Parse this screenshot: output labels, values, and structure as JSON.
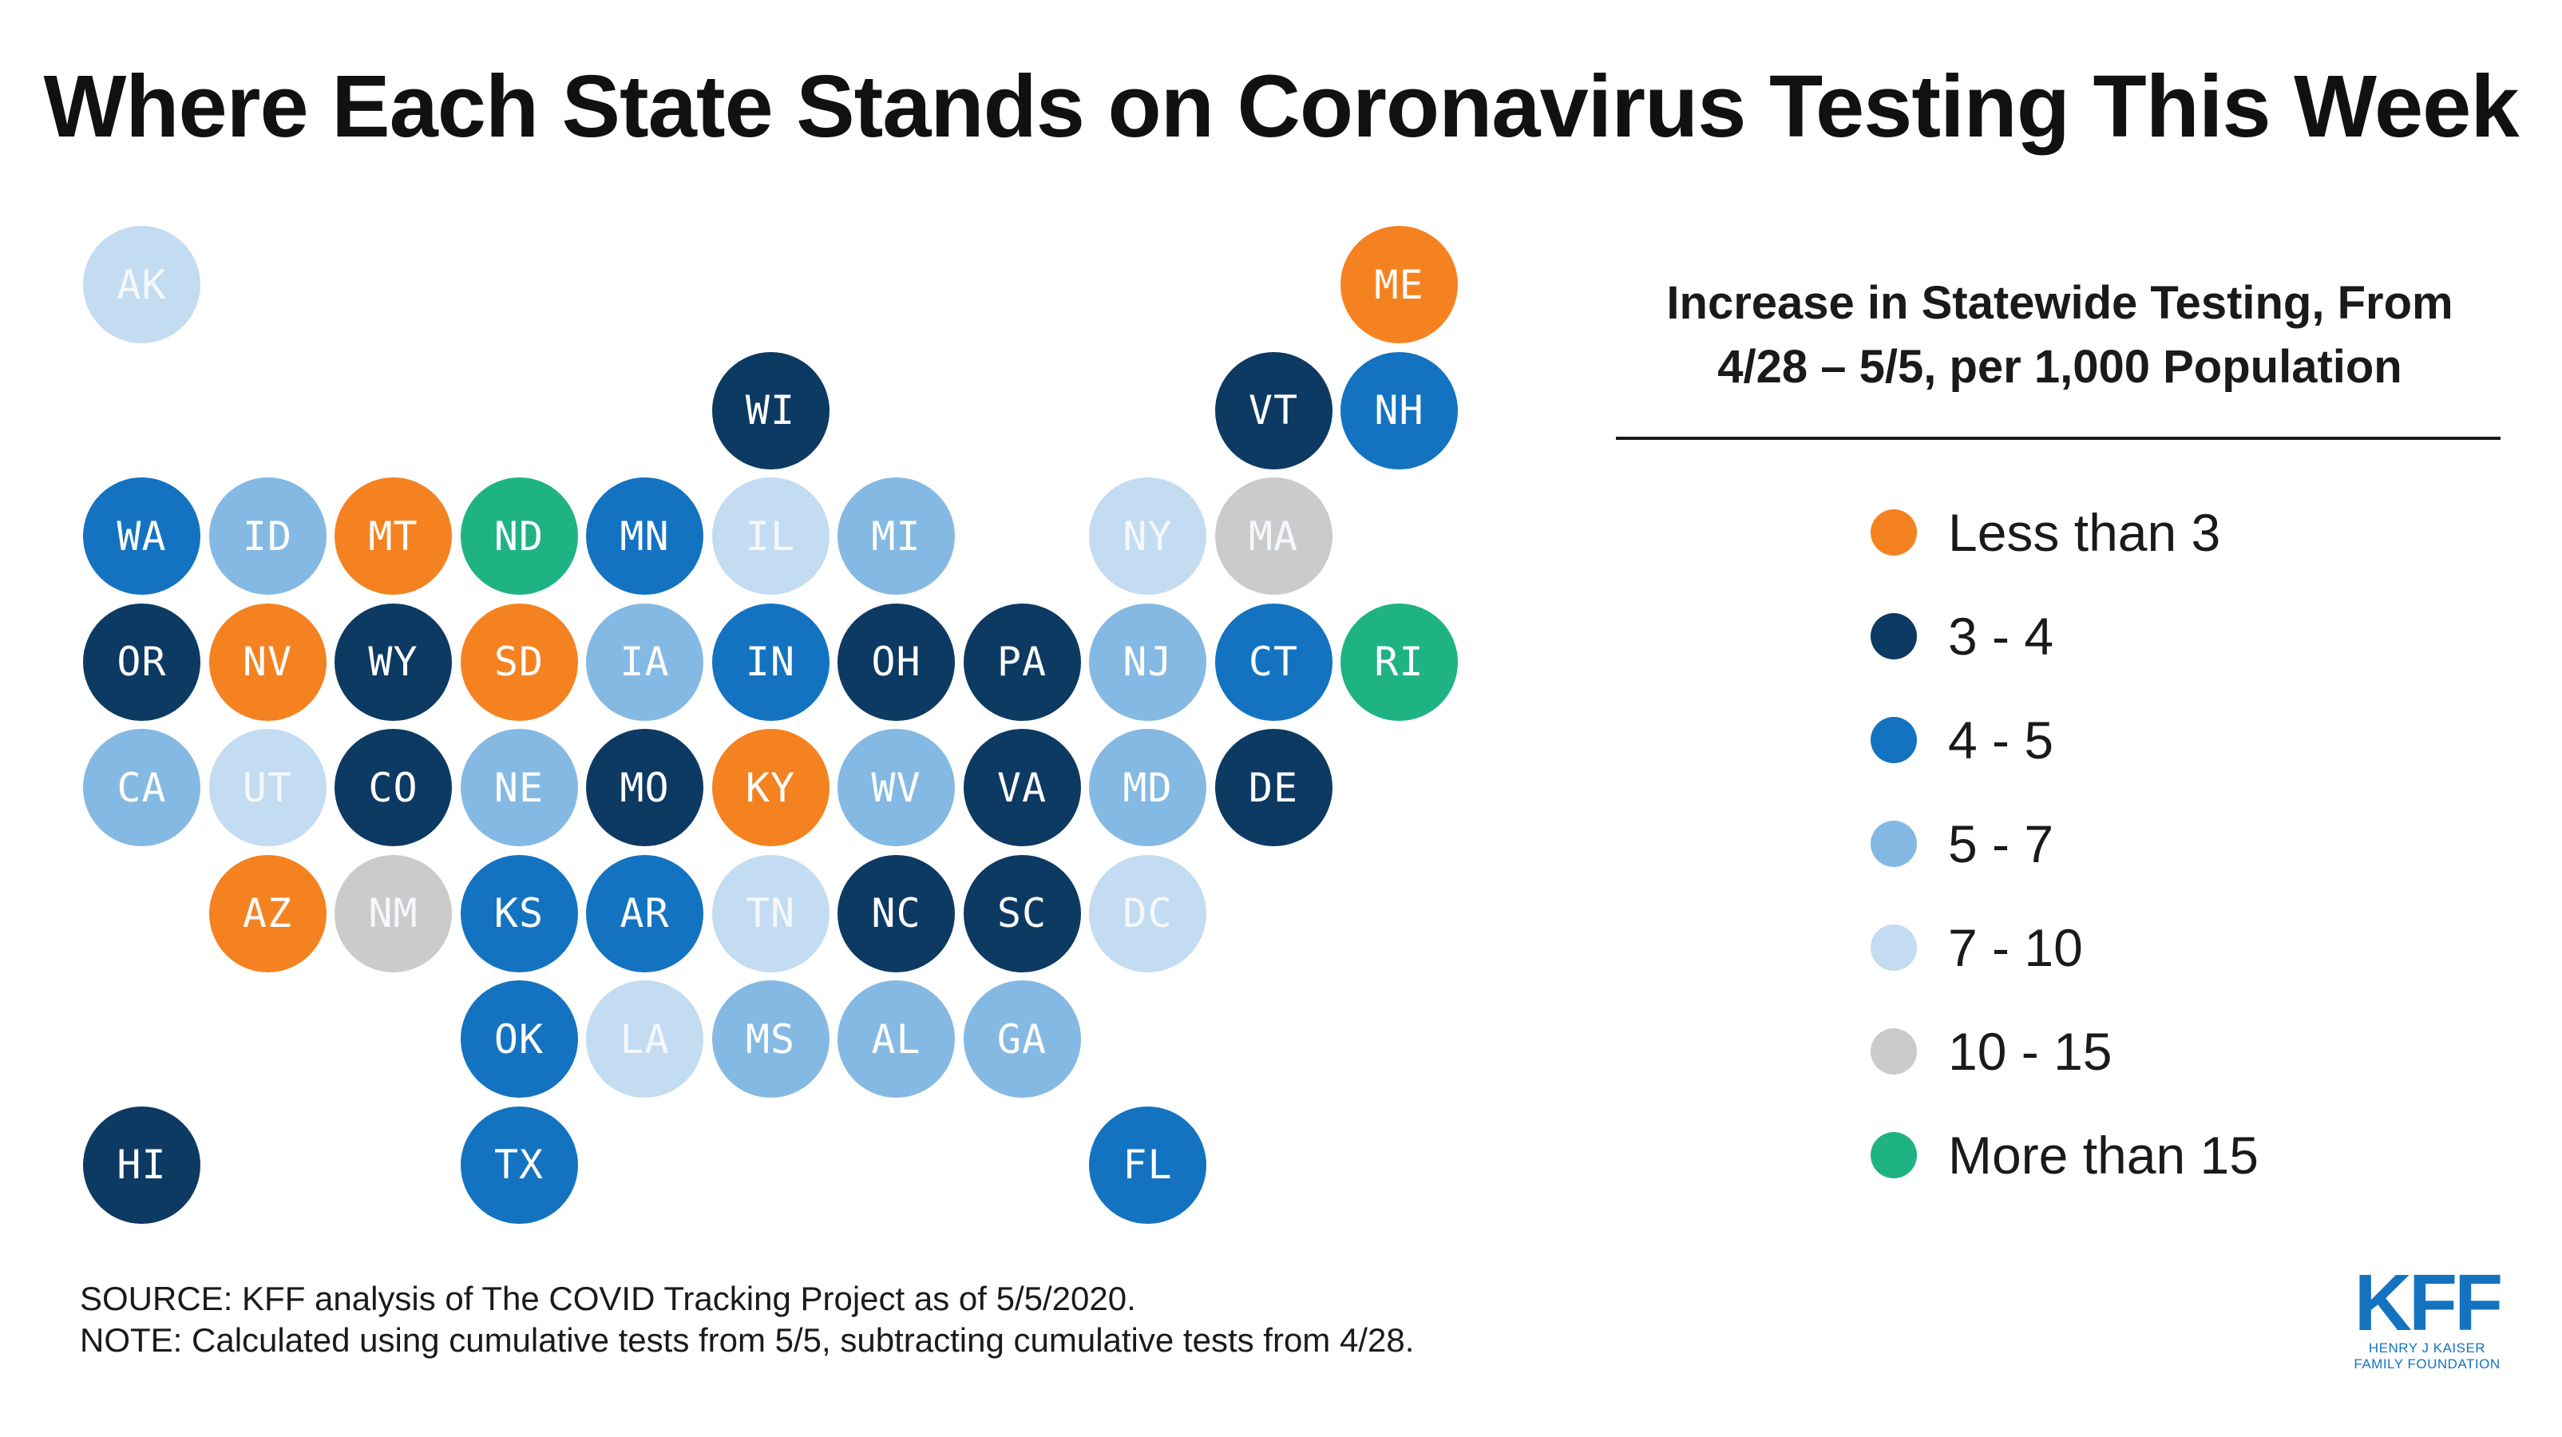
{
  "title": "Where Each State Stands on Coronavirus Testing This Week",
  "legend": {
    "title_line1": "Increase in Statewide Testing, From",
    "title_line2": "4/28 – 5/5, per 1,000 Population",
    "items": [
      {
        "key": "lt3",
        "label": "Less than 3",
        "color": "#f58220"
      },
      {
        "key": "3-4",
        "label": "3 - 4",
        "color": "#0d3a63"
      },
      {
        "key": "4-5",
        "label": "4 - 5",
        "color": "#1473c0"
      },
      {
        "key": "5-7",
        "label": "5 - 7",
        "color": "#84b9e3"
      },
      {
        "key": "7-10",
        "label": "7 - 10",
        "color": "#c3dcf1"
      },
      {
        "key": "10-15",
        "label": "10 - 15",
        "color": "#cbcbcb"
      },
      {
        "key": "gt15",
        "label": "More than 15",
        "color": "#1fb383"
      }
    ]
  },
  "states": [
    {
      "abbr": "AK",
      "row": 0,
      "col": 0,
      "bin": "7-10"
    },
    {
      "abbr": "ME",
      "row": 0,
      "col": 10,
      "bin": "lt3"
    },
    {
      "abbr": "WI",
      "row": 1,
      "col": 5,
      "bin": "3-4"
    },
    {
      "abbr": "VT",
      "row": 1,
      "col": 9,
      "bin": "3-4"
    },
    {
      "abbr": "NH",
      "row": 1,
      "col": 10,
      "bin": "4-5"
    },
    {
      "abbr": "WA",
      "row": 2,
      "col": 0,
      "bin": "4-5"
    },
    {
      "abbr": "ID",
      "row": 2,
      "col": 1,
      "bin": "5-7"
    },
    {
      "abbr": "MT",
      "row": 2,
      "col": 2,
      "bin": "lt3"
    },
    {
      "abbr": "ND",
      "row": 2,
      "col": 3,
      "bin": "gt15"
    },
    {
      "abbr": "MN",
      "row": 2,
      "col": 4,
      "bin": "4-5"
    },
    {
      "abbr": "IL",
      "row": 2,
      "col": 5,
      "bin": "7-10"
    },
    {
      "abbr": "MI",
      "row": 2,
      "col": 6,
      "bin": "5-7"
    },
    {
      "abbr": "NY",
      "row": 2,
      "col": 8,
      "bin": "7-10"
    },
    {
      "abbr": "MA",
      "row": 2,
      "col": 9,
      "bin": "10-15"
    },
    {
      "abbr": "OR",
      "row": 3,
      "col": 0,
      "bin": "3-4"
    },
    {
      "abbr": "NV",
      "row": 3,
      "col": 1,
      "bin": "lt3"
    },
    {
      "abbr": "WY",
      "row": 3,
      "col": 2,
      "bin": "3-4"
    },
    {
      "abbr": "SD",
      "row": 3,
      "col": 3,
      "bin": "lt3"
    },
    {
      "abbr": "IA",
      "row": 3,
      "col": 4,
      "bin": "5-7"
    },
    {
      "abbr": "IN",
      "row": 3,
      "col": 5,
      "bin": "4-5"
    },
    {
      "abbr": "OH",
      "row": 3,
      "col": 6,
      "bin": "3-4"
    },
    {
      "abbr": "PA",
      "row": 3,
      "col": 7,
      "bin": "3-4"
    },
    {
      "abbr": "NJ",
      "row": 3,
      "col": 8,
      "bin": "5-7"
    },
    {
      "abbr": "CT",
      "row": 3,
      "col": 9,
      "bin": "4-5"
    },
    {
      "abbr": "RI",
      "row": 3,
      "col": 10,
      "bin": "gt15"
    },
    {
      "abbr": "CA",
      "row": 4,
      "col": 0,
      "bin": "5-7"
    },
    {
      "abbr": "UT",
      "row": 4,
      "col": 1,
      "bin": "7-10"
    },
    {
      "abbr": "CO",
      "row": 4,
      "col": 2,
      "bin": "3-4"
    },
    {
      "abbr": "NE",
      "row": 4,
      "col": 3,
      "bin": "5-7"
    },
    {
      "abbr": "MO",
      "row": 4,
      "col": 4,
      "bin": "3-4"
    },
    {
      "abbr": "KY",
      "row": 4,
      "col": 5,
      "bin": "lt3"
    },
    {
      "abbr": "WV",
      "row": 4,
      "col": 6,
      "bin": "5-7"
    },
    {
      "abbr": "VA",
      "row": 4,
      "col": 7,
      "bin": "3-4"
    },
    {
      "abbr": "MD",
      "row": 4,
      "col": 8,
      "bin": "5-7"
    },
    {
      "abbr": "DE",
      "row": 4,
      "col": 9,
      "bin": "3-4"
    },
    {
      "abbr": "AZ",
      "row": 5,
      "col": 1,
      "bin": "lt3"
    },
    {
      "abbr": "NM",
      "row": 5,
      "col": 2,
      "bin": "10-15"
    },
    {
      "abbr": "KS",
      "row": 5,
      "col": 3,
      "bin": "4-5"
    },
    {
      "abbr": "AR",
      "row": 5,
      "col": 4,
      "bin": "4-5"
    },
    {
      "abbr": "TN",
      "row": 5,
      "col": 5,
      "bin": "7-10"
    },
    {
      "abbr": "NC",
      "row": 5,
      "col": 6,
      "bin": "3-4"
    },
    {
      "abbr": "SC",
      "row": 5,
      "col": 7,
      "bin": "3-4"
    },
    {
      "abbr": "DC",
      "row": 5,
      "col": 8,
      "bin": "7-10"
    },
    {
      "abbr": "OK",
      "row": 6,
      "col": 3,
      "bin": "4-5"
    },
    {
      "abbr": "LA",
      "row": 6,
      "col": 4,
      "bin": "7-10"
    },
    {
      "abbr": "MS",
      "row": 6,
      "col": 5,
      "bin": "5-7"
    },
    {
      "abbr": "AL",
      "row": 6,
      "col": 6,
      "bin": "5-7"
    },
    {
      "abbr": "GA",
      "row": 6,
      "col": 7,
      "bin": "5-7"
    },
    {
      "abbr": "HI",
      "row": 7,
      "col": 0,
      "bin": "3-4"
    },
    {
      "abbr": "TX",
      "row": 7,
      "col": 3,
      "bin": "4-5"
    },
    {
      "abbr": "FL",
      "row": 7,
      "col": 8,
      "bin": "4-5"
    }
  ],
  "source": "SOURCE: KFF analysis of The COVID Tracking Project as of 5/5/2020.",
  "note": "NOTE: Calculated using cumulative tests from 5/5, subtracting cumulative tests from 4/28.",
  "logo": {
    "mark": "KFF",
    "line1": "HENRY J KAISER",
    "line2": "FAMILY FOUNDATION"
  }
}
